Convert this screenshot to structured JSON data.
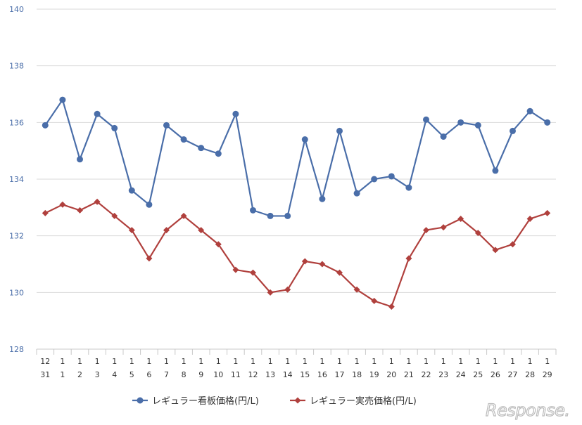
{
  "chart_data": {
    "type": "line",
    "categories": [
      {
        "top": "12",
        "bottom": "31"
      },
      {
        "top": "1",
        "bottom": "1"
      },
      {
        "top": "1",
        "bottom": "2"
      },
      {
        "top": "1",
        "bottom": "3"
      },
      {
        "top": "1",
        "bottom": "4"
      },
      {
        "top": "1",
        "bottom": "5"
      },
      {
        "top": "1",
        "bottom": "6"
      },
      {
        "top": "1",
        "bottom": "7"
      },
      {
        "top": "1",
        "bottom": "8"
      },
      {
        "top": "1",
        "bottom": "9"
      },
      {
        "top": "1",
        "bottom": "10"
      },
      {
        "top": "1",
        "bottom": "11"
      },
      {
        "top": "1",
        "bottom": "12"
      },
      {
        "top": "1",
        "bottom": "13"
      },
      {
        "top": "1",
        "bottom": "14"
      },
      {
        "top": "1",
        "bottom": "15"
      },
      {
        "top": "1",
        "bottom": "16"
      },
      {
        "top": "1",
        "bottom": "17"
      },
      {
        "top": "1",
        "bottom": "18"
      },
      {
        "top": "1",
        "bottom": "19"
      },
      {
        "top": "1",
        "bottom": "20"
      },
      {
        "top": "1",
        "bottom": "21"
      },
      {
        "top": "1",
        "bottom": "22"
      },
      {
        "top": "1",
        "bottom": "23"
      },
      {
        "top": "1",
        "bottom": "24"
      },
      {
        "top": "1",
        "bottom": "25"
      },
      {
        "top": "1",
        "bottom": "26"
      },
      {
        "top": "1",
        "bottom": "27"
      },
      {
        "top": "1",
        "bottom": "28"
      },
      {
        "top": "1",
        "bottom": "29"
      }
    ],
    "series": [
      {
        "name": "レギュラー看板価格(円/L)",
        "color": "#4a6ea9",
        "marker": "circle",
        "values": [
          135.9,
          136.8,
          134.7,
          136.3,
          135.8,
          133.6,
          133.1,
          135.9,
          135.4,
          135.1,
          134.9,
          136.3,
          132.9,
          132.7,
          132.7,
          135.4,
          133.3,
          135.7,
          133.5,
          134.0,
          134.1,
          133.7,
          136.1,
          135.5,
          136.0,
          135.9,
          134.3,
          135.7,
          136.4,
          136.0
        ]
      },
      {
        "name": "レギュラー実売価格(円/L)",
        "color": "#b0403d",
        "marker": "diamond",
        "values": [
          132.8,
          133.1,
          132.9,
          133.2,
          132.7,
          132.2,
          131.2,
          132.2,
          132.7,
          132.2,
          131.7,
          130.8,
          130.7,
          130.0,
          130.1,
          131.1,
          131.0,
          130.7,
          130.1,
          129.7,
          129.5,
          131.2,
          132.2,
          132.3,
          132.6,
          132.1,
          131.5,
          131.7,
          132.6,
          132.8
        ]
      }
    ],
    "ylim": [
      128,
      140
    ],
    "yticks": [
      "128",
      "130",
      "132",
      "134",
      "136",
      "138",
      "140"
    ],
    "grid": true,
    "legend_position": "bottom"
  },
  "watermark": "Response."
}
